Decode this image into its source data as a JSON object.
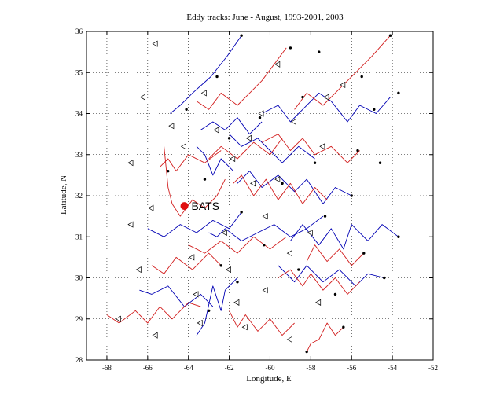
{
  "chart_data": {
    "type": "line",
    "title": "Eddy tracks: June - August, 1993-2001, 2003",
    "xlabel": "Longitude, E",
    "ylabel": "Latitude, N",
    "xlim": [
      -69,
      -52
    ],
    "ylim": [
      28,
      36
    ],
    "xticks": [
      -68,
      -66,
      -64,
      -62,
      -60,
      -58,
      -56,
      -54,
      -52
    ],
    "yticks": [
      28,
      29,
      30,
      31,
      32,
      33,
      34,
      35,
      36
    ],
    "grid": true,
    "colors": {
      "blue": "#0000b4",
      "red": "#d21e1e",
      "station": "#e01010"
    },
    "annotation": {
      "text": "BATS",
      "x": -64.2,
      "y": 31.75
    },
    "series": [
      {
        "color": "blue",
        "x": [
          -61.4,
          -62.1,
          -62.9,
          -63.8,
          -64.4,
          -64.9
        ],
        "y": [
          35.9,
          35.4,
          34.9,
          34.5,
          34.2,
          34.0
        ]
      },
      {
        "color": "blue",
        "x": [
          -54.1,
          -54.8,
          -55.6,
          -56.2,
          -57.0,
          -57.6,
          -58.4,
          -59.0,
          -59.6,
          -60.4
        ],
        "y": [
          34.4,
          34.0,
          34.2,
          33.8,
          34.3,
          34.5,
          34.1,
          33.8,
          34.2,
          34.0
        ]
      },
      {
        "color": "blue",
        "x": [
          -53.7,
          -54.5,
          -55.2,
          -56.0,
          -56.4,
          -57.0,
          -57.6,
          -58.4,
          -59.0
        ],
        "y": [
          31.0,
          31.3,
          30.9,
          31.3,
          30.7,
          31.2,
          30.8,
          31.3,
          30.9
        ]
      },
      {
        "color": "blue",
        "x": [
          -54.4,
          -55.2,
          -55.8,
          -56.6,
          -57.4,
          -58.2,
          -58.8,
          -59.6
        ],
        "y": [
          30.0,
          30.1,
          29.8,
          30.2,
          29.9,
          30.3,
          29.9,
          30.3
        ]
      },
      {
        "color": "blue",
        "x": [
          -57.4,
          -58.2,
          -59.0,
          -59.8,
          -60.6,
          -61.4,
          -62.2,
          -62.6,
          -63.0
        ],
        "y": [
          31.5,
          31.2,
          31.0,
          31.3,
          31.1,
          30.9,
          31.2,
          31.0,
          31.1
        ]
      },
      {
        "color": "blue",
        "x": [
          -60.4,
          -61.0,
          -61.6,
          -62.2,
          -62.8,
          -63.4
        ],
        "y": [
          33.8,
          33.5,
          33.9,
          33.6,
          33.8,
          33.6
        ]
      },
      {
        "color": "blue",
        "x": [
          -61.6,
          -62.2,
          -62.4,
          -62.8,
          -63.2,
          -63.6
        ],
        "y": [
          30.0,
          29.7,
          29.2,
          29.8,
          28.9,
          28.6
        ]
      },
      {
        "color": "blue",
        "x": [
          -62.8,
          -63.4,
          -64.2,
          -65.0,
          -65.8,
          -66.4
        ],
        "y": [
          29.3,
          29.6,
          29.3,
          29.8,
          29.6,
          29.7
        ]
      },
      {
        "color": "blue",
        "x": [
          -56.0,
          -56.8,
          -57.4,
          -58.2,
          -58.8,
          -59.6,
          -60.4,
          -61.0,
          -61.6
        ],
        "y": [
          32.0,
          32.2,
          31.8,
          32.4,
          32.1,
          32.5,
          32.2,
          32.6,
          32.3
        ]
      },
      {
        "color": "blue",
        "x": [
          -61.4,
          -62.0,
          -62.8,
          -63.6,
          -64.4,
          -65.2,
          -66.0
        ],
        "y": [
          31.6,
          31.2,
          31.4,
          31.1,
          31.3,
          31.0,
          31.2
        ]
      },
      {
        "color": "blue",
        "x": [
          -61.8,
          -62.4,
          -62.8,
          -63.2,
          -63.6
        ],
        "y": [
          32.6,
          32.9,
          32.5,
          33.0,
          33.2
        ]
      },
      {
        "color": "blue",
        "x": [
          -57.8,
          -58.6,
          -59.4,
          -60.0,
          -60.6,
          -61.4,
          -62.0
        ],
        "y": [
          32.9,
          33.2,
          32.8,
          33.1,
          33.4,
          33.2,
          33.5
        ]
      },
      {
        "color": "red",
        "x": [
          -54.1,
          -55.0,
          -55.8,
          -56.6,
          -57.4,
          -58.2,
          -58.8
        ],
        "y": [
          35.9,
          35.4,
          35.0,
          34.6,
          34.2,
          34.5,
          34.1
        ]
      },
      {
        "color": "red",
        "x": [
          -59.2,
          -59.8,
          -60.4,
          -61.0,
          -61.6,
          -62.4,
          -63.0,
          -63.6
        ],
        "y": [
          35.6,
          35.2,
          34.8,
          34.5,
          34.2,
          34.5,
          34.1,
          34.3
        ]
      },
      {
        "color": "red",
        "x": [
          -55.6,
          -56.2,
          -57.0,
          -57.8,
          -58.4,
          -59.0,
          -59.6,
          -60.4
        ],
        "y": [
          33.1,
          32.8,
          33.2,
          33.0,
          33.4,
          33.1,
          33.5,
          33.3
        ]
      },
      {
        "color": "red",
        "x": [
          -59.4,
          -60.0,
          -60.8,
          -61.6,
          -62.4,
          -63.0
        ],
        "y": [
          33.4,
          33.0,
          33.3,
          32.9,
          33.2,
          32.9
        ]
      },
      {
        "color": "red",
        "x": [
          -62.4,
          -63.2,
          -64.0,
          -64.6,
          -65.0,
          -65.4
        ],
        "y": [
          33.1,
          32.8,
          33.0,
          32.6,
          32.9,
          32.7
        ]
      },
      {
        "color": "red",
        "x": [
          -62.2,
          -62.6,
          -63.2,
          -63.8,
          -64.4,
          -64.8,
          -65.0,
          -65.2
        ],
        "y": [
          32.4,
          32.0,
          31.7,
          31.9,
          31.5,
          31.8,
          32.2,
          33.2
        ]
      },
      {
        "color": "red",
        "x": [
          -55.4,
          -56.0,
          -56.6,
          -57.2,
          -57.8,
          -58.2
        ],
        "y": [
          30.6,
          30.3,
          30.7,
          30.4,
          30.8,
          30.4
        ]
      },
      {
        "color": "red",
        "x": [
          -55.6,
          -56.2,
          -56.8,
          -57.4,
          -58.0,
          -58.4,
          -59.0,
          -59.6
        ],
        "y": [
          29.9,
          29.6,
          30.0,
          29.7,
          30.1,
          29.8,
          30.2,
          30.0
        ]
      },
      {
        "color": "red",
        "x": [
          -59.2,
          -60.0,
          -60.8,
          -61.6,
          -62.4,
          -63.2,
          -64.0
        ],
        "y": [
          31.0,
          30.7,
          31.0,
          30.6,
          30.9,
          30.6,
          30.8
        ]
      },
      {
        "color": "red",
        "x": [
          -62.4,
          -63.0,
          -63.8,
          -64.6,
          -65.2,
          -65.8
        ],
        "y": [
          30.3,
          30.6,
          30.2,
          30.5,
          30.1,
          30.3
        ]
      },
      {
        "color": "red",
        "x": [
          -68.0,
          -67.4,
          -66.6,
          -66.0,
          -65.4,
          -64.8,
          -64.0,
          -63.4
        ],
        "y": [
          29.1,
          28.9,
          29.2,
          28.9,
          29.3,
          29.0,
          29.4,
          29.3
        ]
      },
      {
        "color": "red",
        "x": [
          -56.4,
          -56.8,
          -57.2,
          -57.6,
          -58.0,
          -58.2
        ],
        "y": [
          28.8,
          28.6,
          28.9,
          28.5,
          28.4,
          28.2
        ]
      },
      {
        "color": "red",
        "x": [
          -58.8,
          -59.4,
          -60.0,
          -60.6,
          -61.2,
          -61.6,
          -62.0
        ],
        "y": [
          28.9,
          28.6,
          29.0,
          28.7,
          29.1,
          28.8,
          29.2
        ]
      },
      {
        "color": "red",
        "x": [
          -57.2,
          -57.8,
          -58.4,
          -59.0,
          -59.6,
          -60.2,
          -60.8,
          -61.4,
          -61.8
        ],
        "y": [
          31.9,
          32.2,
          31.8,
          32.3,
          31.9,
          32.4,
          32.0,
          32.5,
          32.3
        ]
      }
    ],
    "track_ends": [
      {
        "x": -65.6,
        "y": 35.7
      },
      {
        "x": -66.2,
        "y": 34.4
      },
      {
        "x": -64.8,
        "y": 33.7
      },
      {
        "x": -66.8,
        "y": 31.3
      },
      {
        "x": -66.4,
        "y": 30.2
      },
      {
        "x": -67.4,
        "y": 29.0
      },
      {
        "x": -65.6,
        "y": 28.6
      },
      {
        "x": -64.2,
        "y": 33.2
      },
      {
        "x": -66.8,
        "y": 32.8
      },
      {
        "x": -65.8,
        "y": 31.7
      },
      {
        "x": -59.6,
        "y": 35.2
      },
      {
        "x": -60.4,
        "y": 34.0
      },
      {
        "x": -61.0,
        "y": 33.4
      },
      {
        "x": -61.8,
        "y": 32.9
      },
      {
        "x": -60.8,
        "y": 32.3
      },
      {
        "x": -62.2,
        "y": 31.1
      },
      {
        "x": -62.0,
        "y": 30.2
      },
      {
        "x": -61.6,
        "y": 29.4
      },
      {
        "x": -63.6,
        "y": 29.6
      },
      {
        "x": -63.4,
        "y": 28.9
      },
      {
        "x": -58.8,
        "y": 33.8
      },
      {
        "x": -59.6,
        "y": 32.4
      },
      {
        "x": -60.2,
        "y": 31.5
      },
      {
        "x": -59.0,
        "y": 30.6
      },
      {
        "x": -60.2,
        "y": 29.7
      },
      {
        "x": -61.2,
        "y": 28.8
      },
      {
        "x": -57.2,
        "y": 34.4
      },
      {
        "x": -57.4,
        "y": 33.2
      },
      {
        "x": -58.0,
        "y": 31.1
      },
      {
        "x": -57.6,
        "y": 29.4
      },
      {
        "x": -59.0,
        "y": 28.5
      },
      {
        "x": -56.4,
        "y": 34.7
      },
      {
        "x": -63.2,
        "y": 34.5
      },
      {
        "x": -63.8,
        "y": 30.5
      },
      {
        "x": -62.6,
        "y": 33.6
      }
    ],
    "track_starts": [
      {
        "x": -54.1,
        "y": 35.9
      },
      {
        "x": -55.5,
        "y": 34.9
      },
      {
        "x": -57.6,
        "y": 35.5
      },
      {
        "x": -59.0,
        "y": 35.6
      },
      {
        "x": -61.4,
        "y": 35.9
      },
      {
        "x": -54.9,
        "y": 34.1
      },
      {
        "x": -55.7,
        "y": 33.1
      },
      {
        "x": -54.6,
        "y": 32.8
      },
      {
        "x": -56.0,
        "y": 32.0
      },
      {
        "x": -53.7,
        "y": 31.0
      },
      {
        "x": -55.4,
        "y": 30.6
      },
      {
        "x": -54.4,
        "y": 30.0
      },
      {
        "x": -56.4,
        "y": 28.8
      },
      {
        "x": -58.2,
        "y": 28.2
      },
      {
        "x": -57.3,
        "y": 31.5
      },
      {
        "x": -59.4,
        "y": 32.3
      },
      {
        "x": -60.5,
        "y": 33.9
      },
      {
        "x": -62.0,
        "y": 33.4
      },
      {
        "x": -63.2,
        "y": 32.4
      },
      {
        "x": -61.4,
        "y": 31.6
      },
      {
        "x": -62.4,
        "y": 30.3
      },
      {
        "x": -61.6,
        "y": 29.9
      },
      {
        "x": -63.0,
        "y": 29.2
      },
      {
        "x": -58.6,
        "y": 30.2
      },
      {
        "x": -56.8,
        "y": 29.6
      },
      {
        "x": -60.3,
        "y": 30.8
      },
      {
        "x": -62.6,
        "y": 34.9
      },
      {
        "x": -64.1,
        "y": 34.1
      },
      {
        "x": -65.0,
        "y": 32.6
      },
      {
        "x": -57.8,
        "y": 32.8
      },
      {
        "x": -58.4,
        "y": 34.4
      },
      {
        "x": -53.7,
        "y": 34.5
      }
    ]
  }
}
